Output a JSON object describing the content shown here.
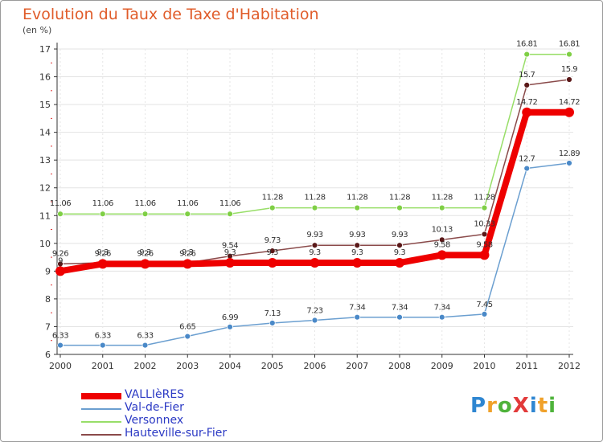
{
  "title": "Evolution du Taux de Taxe d'Habitation",
  "unit": "(en %)",
  "logo": {
    "text": "ProXiti",
    "colors": [
      "#2e86d1",
      "#f0a12a",
      "#4fb33b",
      "#e23a3a",
      "#2e86d1",
      "#f0a12a",
      "#4fb33b"
    ]
  },
  "chart_data": {
    "type": "line",
    "x": [
      "2000",
      "2001",
      "2002",
      "2003",
      "2004",
      "2005",
      "2006",
      "2007",
      "2008",
      "2009",
      "2010",
      "2011",
      "2012"
    ],
    "ylim": [
      6,
      17
    ],
    "yticks": [
      6,
      7,
      8,
      9,
      10,
      11,
      12,
      13,
      14,
      15,
      16,
      17
    ],
    "grid": true,
    "legend_position": "bottom-left",
    "series": [
      {
        "name": "VALLIèRES",
        "color": "#ee0000",
        "width": 8,
        "values": [
          9.0,
          9.26,
          9.26,
          9.26,
          9.3,
          9.3,
          9.3,
          9.3,
          9.3,
          9.58,
          9.58,
          14.72,
          14.72
        ],
        "labels": [
          "9",
          "9.26",
          "9.26",
          "9.26",
          "9.3",
          "9.3",
          "9.3",
          "9.3",
          "9.3",
          "9.58",
          "9.58",
          "14.72",
          "14.72"
        ]
      },
      {
        "name": "Val-de-Fier",
        "color": "#6b9fd0",
        "width": 1.5,
        "values": [
          6.33,
          6.33,
          6.33,
          6.65,
          6.99,
          7.13,
          7.23,
          7.34,
          7.34,
          7.34,
          7.45,
          12.7,
          12.89
        ],
        "labels": [
          "6.33",
          "6.33",
          "6.33",
          "6.65",
          "6.99",
          "7.13",
          "7.23",
          "7.34",
          "7.34",
          "7.34",
          "7.45",
          "12.7",
          "12.89"
        ]
      },
      {
        "name": "Versonnex",
        "color": "#98de68",
        "width": 1.5,
        "values": [
          11.06,
          11.06,
          11.06,
          11.06,
          11.06,
          11.28,
          11.28,
          11.28,
          11.28,
          11.28,
          11.28,
          16.81,
          16.81
        ],
        "labels": [
          "11.06",
          "11.06",
          "11.06",
          "11.06",
          "11.06",
          "11.28",
          "11.28",
          "11.28",
          "11.28",
          "11.28",
          "11.28",
          "16.81",
          "16.81"
        ]
      },
      {
        "name": "Hauteville-sur-Fier",
        "color": "#8a4a4a",
        "width": 1.5,
        "values": [
          9.26,
          9.3,
          9.3,
          9.3,
          9.54,
          9.73,
          9.93,
          9.93,
          9.93,
          10.13,
          10.33,
          15.7,
          15.9
        ],
        "labels": [
          "9.26",
          "9.3",
          "9.3",
          "9.3",
          "9.54",
          "9.73",
          "9.93",
          "9.93",
          "9.93",
          "10.13",
          "10.33",
          "15.7",
          "15.9"
        ]
      }
    ]
  }
}
